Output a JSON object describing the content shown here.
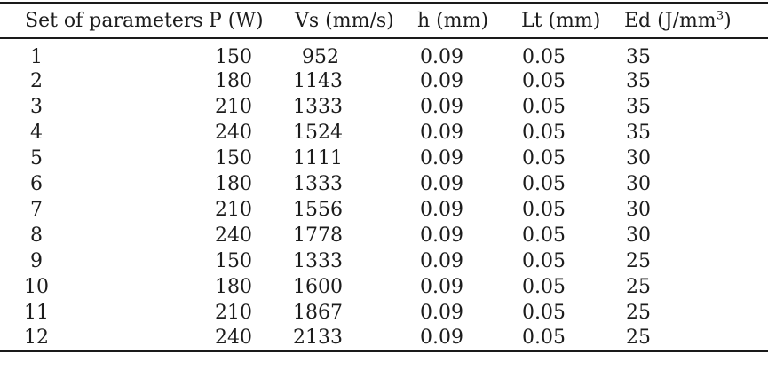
{
  "colors": {
    "background": "#ffffff",
    "text": "#1c1c1c",
    "rule": "#1a1a1a"
  },
  "table": {
    "columns": [
      {
        "key": "set",
        "label": "Set of parameters"
      },
      {
        "key": "p",
        "label": "P (W)"
      },
      {
        "key": "vs",
        "label": "Vs (mm/s)"
      },
      {
        "key": "h",
        "label": "h (mm)"
      },
      {
        "key": "lt",
        "label": "Lt (mm)"
      },
      {
        "key": "ed",
        "label": "Ed (J/mm",
        "sup": "3",
        "suffix": ")"
      }
    ],
    "rows": [
      [
        "1",
        "150",
        "952",
        "0.09",
        "0.05",
        "35"
      ],
      [
        "2",
        "180",
        "1143",
        "0.09",
        "0.05",
        "35"
      ],
      [
        "3",
        "210",
        "1333",
        "0.09",
        "0.05",
        "35"
      ],
      [
        "4",
        "240",
        "1524",
        "0.09",
        "0.05",
        "35"
      ],
      [
        "5",
        "150",
        "1111",
        "0.09",
        "0.05",
        "30"
      ],
      [
        "6",
        "180",
        "1333",
        "0.09",
        "0.05",
        "30"
      ],
      [
        "7",
        "210",
        "1556",
        "0.09",
        "0.05",
        "30"
      ],
      [
        "8",
        "240",
        "1778",
        "0.09",
        "0.05",
        "30"
      ],
      [
        "9",
        "150",
        "1333",
        "0.09",
        "0.05",
        "25"
      ],
      [
        "10",
        "180",
        "1600",
        "0.09",
        "0.05",
        "25"
      ],
      [
        "11",
        "210",
        "1867",
        "0.09",
        "0.05",
        "25"
      ],
      [
        "12",
        "240",
        "2133",
        "0.09",
        "0.05",
        "25"
      ]
    ]
  }
}
